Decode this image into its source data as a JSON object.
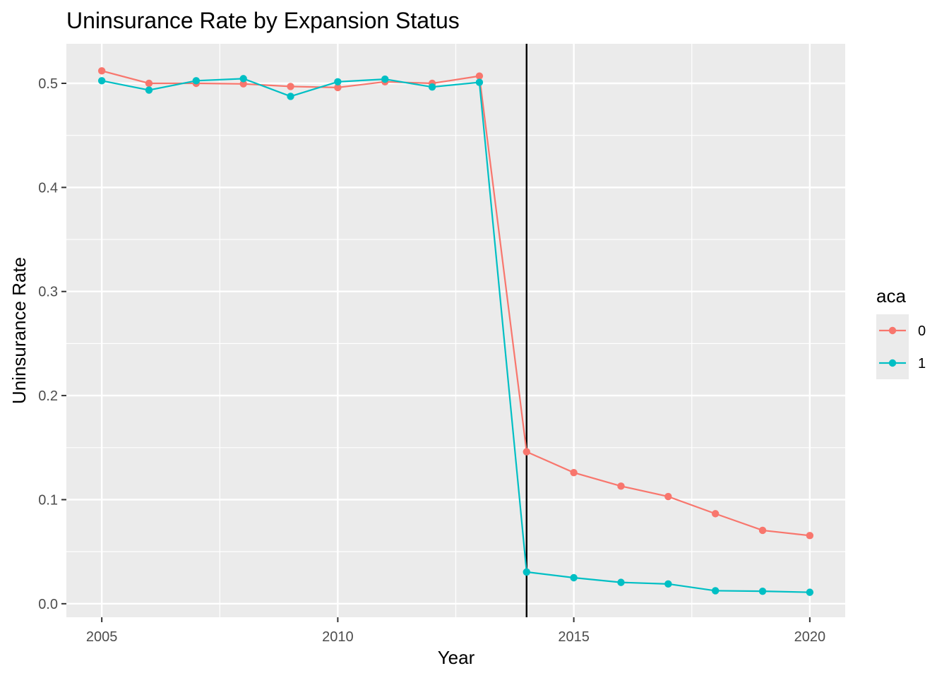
{
  "chart_data": {
    "type": "line",
    "title": "Uninsurance Rate by Expansion Status",
    "xlabel": "Year",
    "ylabel": "Uninsurance Rate",
    "xlim": [
      2004.25,
      2020.75
    ],
    "ylim": [
      -0.013,
      0.538
    ],
    "x_ticks": [
      2005,
      2010,
      2015,
      2020
    ],
    "y_ticks": [
      0.0,
      0.1,
      0.2,
      0.3,
      0.4,
      0.5
    ],
    "y_tick_labels": [
      "0.0",
      "0.1",
      "0.2",
      "0.3",
      "0.4",
      "0.5"
    ],
    "grid": true,
    "reference_line": {
      "x": 2014,
      "color": "#000000"
    },
    "legend": {
      "title": "aca",
      "position": "right"
    },
    "x": [
      2005,
      2006,
      2007,
      2008,
      2009,
      2010,
      2011,
      2012,
      2013,
      2014,
      2015,
      2016,
      2017,
      2018,
      2019,
      2020
    ],
    "series": [
      {
        "name": "0",
        "color": "#F8766D",
        "values": [
          0.512,
          0.5,
          0.5,
          0.4995,
          0.497,
          0.496,
          0.5015,
          0.5,
          0.507,
          0.146,
          0.126,
          0.113,
          0.103,
          0.0865,
          0.0705,
          0.0655
        ]
      },
      {
        "name": "1",
        "color": "#00BFC4",
        "values": [
          0.5025,
          0.4935,
          0.5025,
          0.5045,
          0.4875,
          0.5015,
          0.504,
          0.4965,
          0.501,
          0.0305,
          0.025,
          0.0205,
          0.019,
          0.0125,
          0.012,
          0.011
        ]
      }
    ]
  }
}
